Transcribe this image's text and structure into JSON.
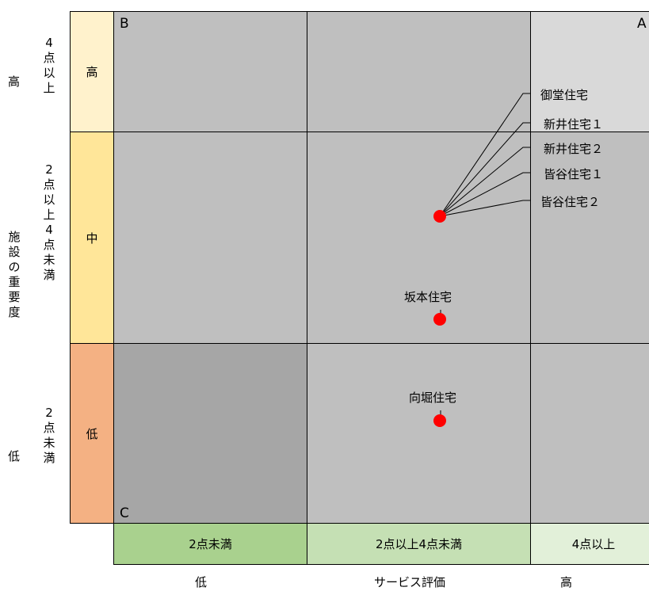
{
  "y_axis": {
    "title": "施設の重要度",
    "high_label": "高",
    "low_label": "低",
    "levels": [
      {
        "name": "高",
        "criteria": "4点以上",
        "color": "#fff2cc"
      },
      {
        "name": "中",
        "criteria": "2点以上4点未満",
        "color": "#ffe699"
      },
      {
        "name": "低",
        "criteria": "2点未満",
        "color": "#f4b183"
      }
    ]
  },
  "x_axis": {
    "title": "サービス評価",
    "low_label": "低",
    "high_label": "高",
    "levels": [
      {
        "criteria": "2点未満",
        "color": "#a9d18e"
      },
      {
        "criteria": "2点以上4点未満",
        "color": "#c5e0b4"
      },
      {
        "criteria": "4点以上",
        "color": "#e2f0d9"
      }
    ]
  },
  "quadrant_labels": {
    "top_left": "B",
    "top_right": "A",
    "bottom_left": "C"
  },
  "grid_colors": {
    "dark": "#a6a6a6",
    "mid": "#bfbfbf",
    "light": "#d9d9d9"
  },
  "dot_color": "#ff0000",
  "points": [
    {
      "name": "御堂住宅",
      "service": "2点以上4点未満",
      "importance": "中"
    },
    {
      "name": "新井住宅１",
      "service": "2点以上4点未満",
      "importance": "中"
    },
    {
      "name": "新井住宅２",
      "service": "2点以上4点未満",
      "importance": "中"
    },
    {
      "name": "皆谷住宅１",
      "service": "2点以上4点未満",
      "importance": "中"
    },
    {
      "name": "皆谷住宅２",
      "service": "2点以上4点未満",
      "importance": "中"
    },
    {
      "name": "坂本住宅",
      "service": "2点以上4点未満",
      "importance": "中"
    },
    {
      "name": "向堀住宅",
      "service": "2点以上4点未満",
      "importance": "低"
    }
  ]
}
